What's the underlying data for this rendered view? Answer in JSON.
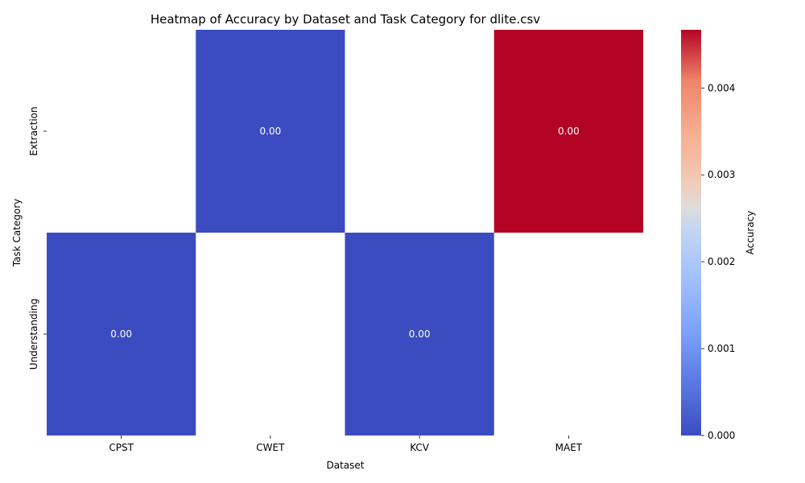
{
  "chart_data": {
    "type": "heatmap",
    "title": "Heatmap of Accuracy by Dataset and Task Category for dlite.csv",
    "xlabel": "Dataset",
    "ylabel": "Task Category",
    "x_categories": [
      "CPST",
      "CWET",
      "KCV",
      "MAET"
    ],
    "y_categories": [
      "Extraction",
      "Understanding"
    ],
    "values": [
      [
        null,
        0.0,
        null,
        0.00467
      ],
      [
        0.0,
        null,
        0.0,
        null
      ]
    ],
    "cell_labels": [
      [
        null,
        "0.00",
        null,
        "0.00"
      ],
      [
        "0.00",
        null,
        "0.00",
        null
      ]
    ],
    "colormap": "coolwarm",
    "colors": {
      "low": "#3b4cc0",
      "mid": "#dddddd",
      "high": "#b40426"
    },
    "colorbar": {
      "label": "Accuracy",
      "range": [
        0,
        0.00467
      ],
      "ticks": [
        0.0,
        0.001,
        0.002,
        0.003,
        0.004
      ],
      "tick_labels": [
        "0.000",
        "0.001",
        "0.002",
        "0.003",
        "0.004"
      ]
    }
  }
}
